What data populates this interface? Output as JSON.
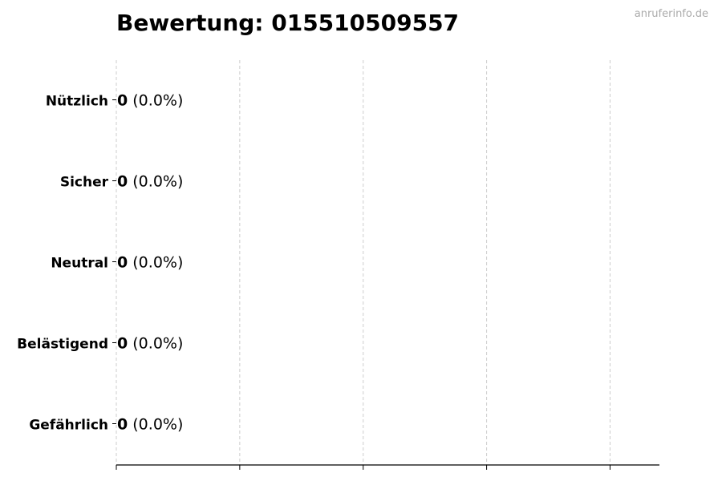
{
  "title": "Bewertung: 015510509557",
  "watermark": "anruferinfo.de",
  "chart_data": {
    "type": "bar",
    "orientation": "horizontal",
    "categories": [
      "Nützlich",
      "Sicher",
      "Neutral",
      "Belästigend",
      "Gefährlich"
    ],
    "values": [
      0,
      0,
      0,
      0,
      0
    ],
    "labels": [
      {
        "count": "0",
        "pct": "(0.0%)"
      },
      {
        "count": "0",
        "pct": "(0.0%)"
      },
      {
        "count": "0",
        "pct": "(0.0%)"
      },
      {
        "count": "0",
        "pct": "(0.0%)"
      },
      {
        "count": "0",
        "pct": "(0.0%)"
      }
    ],
    "xlim": [
      0,
      4.4
    ],
    "xticks": [
      0,
      1,
      2,
      3,
      4
    ],
    "xtick_labels_shown": false,
    "grid": "vertical dashed",
    "grid_color": "#cccccc",
    "bar_edge_color": "#000000"
  }
}
